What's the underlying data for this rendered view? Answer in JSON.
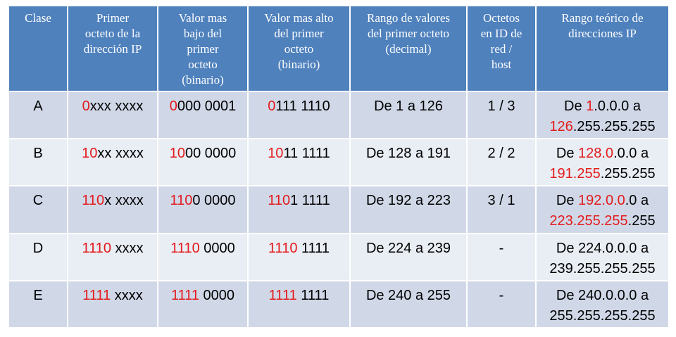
{
  "colors": {
    "header_bg": "#4f81bd",
    "row_odd": "#d0d8e8",
    "row_even": "#e9edf4",
    "highlight": "#e31b1b"
  },
  "headers": [
    [
      "Clase"
    ],
    [
      "Primer",
      "octeto de la",
      "dirección IP"
    ],
    [
      "Valor mas",
      "bajo del",
      "primer",
      "octeto",
      "(binario)"
    ],
    [
      "Valor mas alto",
      "del primer",
      "octeto",
      "(binario)"
    ],
    [
      "Rango de valores",
      "del primer octeto",
      "(decimal)"
    ],
    [
      "Octetos",
      "en ID de",
      "red /",
      "host"
    ],
    [
      "Rango teórico de",
      "direcciones IP"
    ]
  ],
  "rows": [
    {
      "clase": "A",
      "primer": {
        "r": "0",
        "n": "xxx xxxx"
      },
      "bajo": {
        "r": "0",
        "n": "000 0001"
      },
      "alto": {
        "r": "0",
        "n": "111 1110"
      },
      "rango_dec": "De 1 a 126",
      "octetos": "1 / 3",
      "teorico": {
        "l1": [
          {
            "t": "De ",
            "red": false
          },
          {
            "t": "1",
            "red": true
          },
          {
            "t": ".0.0.0 a",
            "red": false
          }
        ],
        "l2": [
          {
            "t": "126",
            "red": true
          },
          {
            "t": ".255.255.255",
            "red": false
          }
        ]
      }
    },
    {
      "clase": "B",
      "primer": {
        "r": "10",
        "n": "xx xxxx"
      },
      "bajo": {
        "r": "10",
        "n": "00 0000"
      },
      "alto": {
        "r": "10",
        "n": "11 1111"
      },
      "rango_dec": "De 128 a 191",
      "octetos": "2 / 2",
      "teorico": {
        "l1": [
          {
            "t": "De ",
            "red": false
          },
          {
            "t": "128.0",
            "red": true
          },
          {
            "t": ".0.0 a",
            "red": false
          }
        ],
        "l2": [
          {
            "t": "191.255",
            "red": true
          },
          {
            "t": ".255.255",
            "red": false
          }
        ]
      }
    },
    {
      "clase": "C",
      "primer": {
        "r": "110",
        "n": "x xxxx"
      },
      "bajo": {
        "r": "110",
        "n": "0 0000"
      },
      "alto": {
        "r": "110",
        "n": "1 1111"
      },
      "rango_dec": "De 192 a 223",
      "octetos": "3 / 1",
      "teorico": {
        "l1": [
          {
            "t": "De ",
            "red": false
          },
          {
            "t": "192.0.0",
            "red": true
          },
          {
            "t": ".0 a",
            "red": false
          }
        ],
        "l2": [
          {
            "t": "223.255.255",
            "red": true
          },
          {
            "t": ".255",
            "red": false
          }
        ]
      }
    },
    {
      "clase": "D",
      "primer": {
        "r": "1110",
        "n": " xxxx"
      },
      "bajo": {
        "r": "1110",
        "n": " 0000"
      },
      "alto": {
        "r": "1110",
        "n": " 1111"
      },
      "rango_dec": "De 224 a 239",
      "octetos": "-",
      "teorico": {
        "l1": [
          {
            "t": "De 224.0.0.0 a",
            "red": false
          }
        ],
        "l2": [
          {
            "t": "239.255.255.255",
            "red": false
          }
        ]
      }
    },
    {
      "clase": "E",
      "primer": {
        "r": "1111",
        "n": " xxxx"
      },
      "bajo": {
        "r": "1111",
        "n": " 0000"
      },
      "alto": {
        "r": "1111",
        "n": " 1111"
      },
      "rango_dec": "De 240 a 255",
      "octetos": "-",
      "teorico": {
        "l1": [
          {
            "t": "De 240.0.0.0 a",
            "red": false
          }
        ],
        "l2": [
          {
            "t": "255.255.255.255",
            "red": false
          }
        ]
      }
    }
  ]
}
